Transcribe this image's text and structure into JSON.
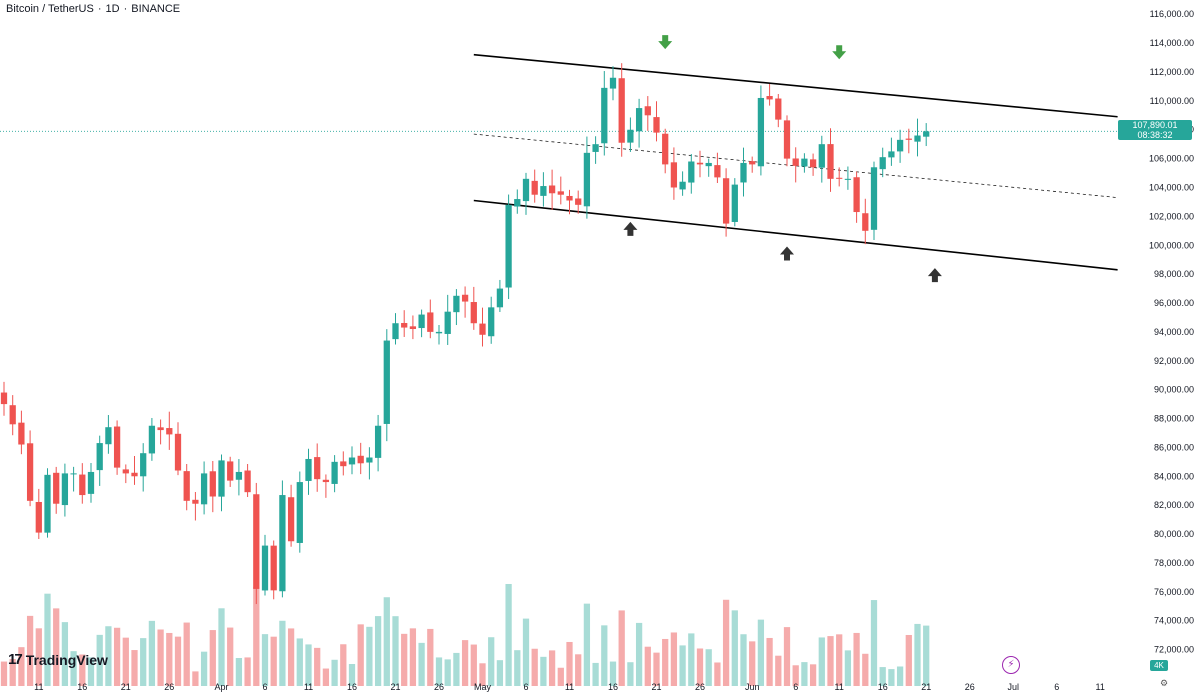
{
  "header": {
    "symbol": "Bitcoin / TetherUS",
    "interval": "1D",
    "exchange": "BINANCE",
    "separator": "·"
  },
  "brand": {
    "name": "TradingView",
    "mark": "17"
  },
  "last_price": {
    "price": "107,890.01",
    "countdown": "08:38:32"
  },
  "volume_tag": "4K",
  "colors": {
    "up": "#26a69a",
    "down": "#ef5350",
    "up_vol": "#a8dcd6",
    "down_vol": "#f5abab",
    "channel": "#000000",
    "last_price_line": "#26a69a",
    "arrow_up": "#333333",
    "arrow_down": "#43a047"
  },
  "chart_data": {
    "type": "candlestick",
    "price_axis": {
      "ylim": [
        71000,
        116500
      ],
      "ticks": [
        72000,
        74000,
        76000,
        78000,
        80000,
        82000,
        84000,
        86000,
        88000,
        90000,
        92000,
        94000,
        96000,
        98000,
        100000,
        102000,
        104000,
        106000,
        108000,
        110000,
        112000,
        114000,
        116000
      ],
      "tick_labels": [
        "72,000.00",
        "74,000.00",
        "76,000.00",
        "78,000.00",
        "80,000.00",
        "82,000.00",
        "84,000.00",
        "86,000.00",
        "88,000.00",
        "90,000.00",
        "92,000.00",
        "94,000.00",
        "96,000.00",
        "98,000.00",
        "100,000.00",
        "102,000.00",
        "104,000.00",
        "106,000.00",
        "108,000.00",
        "110,000.00",
        "112,000.00",
        "114,000.00",
        "116,000.00"
      ]
    },
    "time_axis": {
      "start": "2025-03-07",
      "end": "2025-07-15",
      "tick_labels": [
        {
          "date": "2025-03-11",
          "label": "11"
        },
        {
          "date": "2025-03-16",
          "label": "16"
        },
        {
          "date": "2025-03-21",
          "label": "21"
        },
        {
          "date": "2025-03-26",
          "label": "26"
        },
        {
          "date": "2025-04-01",
          "label": "Apr"
        },
        {
          "date": "2025-04-06",
          "label": "6"
        },
        {
          "date": "2025-04-11",
          "label": "11"
        },
        {
          "date": "2025-04-16",
          "label": "16"
        },
        {
          "date": "2025-04-21",
          "label": "21"
        },
        {
          "date": "2025-04-26",
          "label": "26"
        },
        {
          "date": "2025-05-01",
          "label": "May"
        },
        {
          "date": "2025-05-06",
          "label": "6"
        },
        {
          "date": "2025-05-11",
          "label": "11"
        },
        {
          "date": "2025-05-16",
          "label": "16"
        },
        {
          "date": "2025-05-21",
          "label": "21"
        },
        {
          "date": "2025-05-26",
          "label": "26"
        },
        {
          "date": "2025-06-01",
          "label": "Jun"
        },
        {
          "date": "2025-06-06",
          "label": "6"
        },
        {
          "date": "2025-06-11",
          "label": "11"
        },
        {
          "date": "2025-06-16",
          "label": "16"
        },
        {
          "date": "2025-06-21",
          "label": "21"
        },
        {
          "date": "2025-06-26",
          "label": "26"
        },
        {
          "date": "2025-07-01",
          "label": "Jul"
        },
        {
          "date": "2025-07-06",
          "label": "6"
        },
        {
          "date": "2025-07-11",
          "label": "11"
        }
      ]
    },
    "closes": [
      89000,
      87600,
      86200,
      82300,
      80100,
      84100,
      82100,
      84200,
      84200,
      82700,
      84300,
      86300,
      87400,
      84600,
      84200,
      84000,
      85600,
      87500,
      87200,
      86900,
      84400,
      82300,
      82100,
      84200,
      82600,
      85100,
      83700,
      84300,
      82900,
      76200,
      79200,
      76100,
      82700,
      79500,
      83600,
      85200,
      83800,
      83600,
      85000,
      84700,
      85300,
      84900,
      85300,
      87500,
      93400,
      94600,
      94300,
      94200,
      95200,
      94000,
      94000,
      95400,
      96500,
      96100,
      94600,
      93800,
      95700,
      97000,
      102800,
      103200,
      104600,
      103500,
      104100,
      103600,
      103500,
      103100,
      102800,
      106400,
      107000,
      110900,
      111600,
      107100,
      108000,
      109500,
      109000,
      107800,
      105600,
      104000,
      104400,
      105800,
      105600,
      105700,
      104700,
      101500,
      104200,
      105700,
      105600,
      110200,
      110100,
      108700,
      106000,
      105500,
      106000,
      105400,
      107000,
      104600,
      104600,
      104600,
      102300,
      101000,
      105400,
      106100,
      106500,
      107300,
      107300,
      107600,
      107890
    ],
    "channel_lines": [
      {
        "name": "upper",
        "from": {
          "date": "2025-04-30",
          "price": 113200
        },
        "to": {
          "date": "2025-07-13",
          "price": 108900
        }
      },
      {
        "name": "middle",
        "style": "dashed",
        "from": {
          "date": "2025-04-30",
          "price": 107700
        },
        "to": {
          "date": "2025-07-13",
          "price": 103300
        }
      },
      {
        "name": "lower",
        "from": {
          "date": "2025-04-30",
          "price": 103100
        },
        "to": {
          "date": "2025-07-13",
          "price": 98300
        }
      }
    ],
    "markers": [
      {
        "type": "arrow-down",
        "date": "2025-05-22",
        "price": 114000
      },
      {
        "type": "arrow-down",
        "date": "2025-06-11",
        "price": 113300
      },
      {
        "type": "arrow-up",
        "date": "2025-05-18",
        "price": 101200
      },
      {
        "type": "arrow-up",
        "date": "2025-06-05",
        "price": 99500
      },
      {
        "type": "arrow-up",
        "date": "2025-06-22",
        "price": 98000
      }
    ]
  }
}
